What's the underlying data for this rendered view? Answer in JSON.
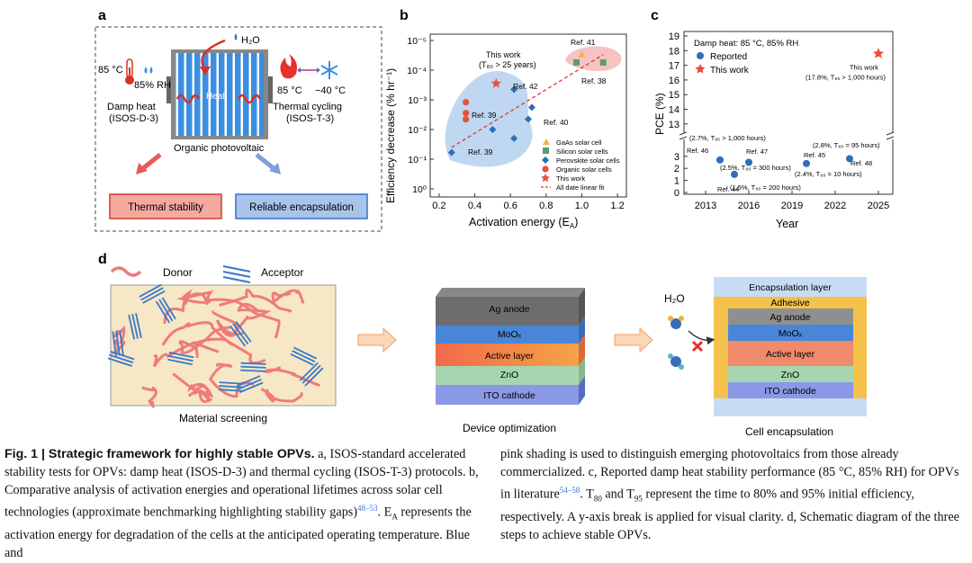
{
  "panel_labels": {
    "a": "a",
    "b": "b",
    "c": "c",
    "d": "d"
  },
  "panel_a": {
    "water": "H₂O",
    "temp_damp": "85 °C",
    "rh": "85% RH",
    "heat": "Heat",
    "damp_heat": "Damp heat",
    "damp_heat_std": "(ISOS-D-3)",
    "hot": "85 °C",
    "cold": "−40 °C",
    "thermal_cycling": "Thermal cycling",
    "thermal_cycling_std": "(ISOS-T-3)",
    "device": "Organic photovoltaic",
    "box_left": "Thermal stability",
    "box_right": "Reliable encapsulation"
  },
  "panel_d": {
    "donor": "Donor",
    "acceptor": "Acceptor",
    "screening": "Material screening",
    "optimization": "Device optimization",
    "encapsulation_title": "Cell encapsulation",
    "water": "H₂O",
    "stack_layers": [
      "Ag anode",
      "MoOₓ",
      "Active layer",
      "ZnO",
      "ITO cathode"
    ],
    "encap_layers": [
      "Encapsulation layer",
      "Adhesive",
      "Ag anode",
      "MoOₓ",
      "Active layer",
      "ZnO",
      "ITO cathode"
    ]
  },
  "chart_data": [
    {
      "type": "scatter",
      "xlabel": "Activation energy (E",
      "xlabel_sub": "A",
      "xlabel_end": ")",
      "ylabel": "Efficiency decrease (% hr⁻¹)",
      "xlim": [
        0.15,
        1.25
      ],
      "log_y": true,
      "y_reversed": true,
      "x_ticks": [
        "0.2",
        "0.4",
        "0.6",
        "0.8",
        "1.0",
        "1.2"
      ],
      "y_ticks": [
        "10⁻⁵",
        "10⁻⁴",
        "10⁻³",
        "10⁻²",
        "10⁻¹",
        "10⁰"
      ],
      "this_work_label": "This work",
      "this_work_t80": "(T₈₀ > 25 years)",
      "refs": [
        "Ref. 41",
        "Ref. 38",
        "Ref. 42",
        "Ref. 39",
        "Ref. 40",
        "Ref. 39"
      ],
      "series": [
        {
          "name": "GaAs solar cell",
          "points": [
            [
              1.0,
              3e-05
            ]
          ]
        },
        {
          "name": "Silicon solar cells",
          "points": [
            [
              0.97,
              5.5e-05
            ],
            [
              1.12,
              5.5e-05
            ]
          ]
        },
        {
          "name": "Perovskite solar cells",
          "points": [
            [
              0.27,
              0.06
            ],
            [
              0.5,
              0.01
            ],
            [
              0.62,
              0.02
            ],
            [
              0.62,
              0.00045
            ],
            [
              0.7,
              0.0045
            ],
            [
              0.72,
              0.0018
            ]
          ]
        },
        {
          "name": "Organic solar cells",
          "points": [
            [
              0.35,
              0.0012
            ],
            [
              0.35,
              0.0028
            ],
            [
              0.35,
              0.0045
            ]
          ]
        },
        {
          "name": "This work",
          "points": [
            [
              0.52,
              0.00028
            ]
          ]
        },
        {
          "name": "All date linear fit",
          "line": [
            [
              0.27,
              0.04
            ],
            [
              1.12,
              3e-05
            ]
          ]
        }
      ]
    },
    {
      "type": "scatter",
      "xlabel": "Year",
      "ylabel": "PCE (%)",
      "title": "Damp heat: 85 °C, 85% RH",
      "x_ticks": [
        "2013",
        "2016",
        "2019",
        "2022",
        "2025"
      ],
      "y_ticks_upper": [
        "13",
        "14",
        "15",
        "16",
        "17",
        "18",
        "19"
      ],
      "y_ticks_lower": [
        "0",
        "1",
        "2",
        "3"
      ],
      "y_break": true,
      "series": [
        {
          "name": "Reported",
          "points": [
            {
              "x": 2014,
              "y": 2.7,
              "ref": "Ref. 46",
              "note": "(2.7%, T₉₅ > 1,000 hours)"
            },
            {
              "x": 2016,
              "y": 2.5,
              "ref": "Ref. 47",
              "note": "(2.5%, T₈₀ = 300 hours)"
            },
            {
              "x": 2015,
              "y": 1.5,
              "ref": "Ref. 44",
              "note": "(1.5%, T₈₀ = 200 hours)"
            },
            {
              "x": 2020,
              "y": 2.4,
              "ref": "Ref. 45",
              "note": "(2.4%, T₈₀ = 10 hours)"
            },
            {
              "x": 2023,
              "y": 2.8,
              "ref": "Ref. 48",
              "note": "(2.8%, T₈₀ = 95 hours)"
            }
          ]
        },
        {
          "name": "This work",
          "points": [
            {
              "x": 2025,
              "y": 17.8,
              "label": "This work",
              "note": "(17.8%, T₉₅ > 1,000 hours)"
            }
          ]
        }
      ]
    }
  ],
  "caption": {
    "fig": "Fig. 1 | Strategic framework for highly stable OPVs.",
    "left": [
      "a, ISOS-standard accelerated stability tests for OPVs: damp heat (ISOS-D-3) and thermal cycling (ISOS-T-3) protocols. b, Comparative analysis of activation energies and operational lifetimes across solar cell technologies (approximate benchmarking highlighting stability gaps)",
      "48–53",
      ". E",
      "A",
      " represents the activation energy for degradation of the cells at the anticipated operating temperature. Blue and"
    ],
    "right": [
      "pink shading is used to distinguish emerging photovoltaics from those already commercialized. c, Reported damp heat stability performance (85 °C, 85% RH) for OPVs in literature",
      "54–58",
      ". T",
      "80",
      " and T",
      "95",
      " represent the time to 80% and 95% initial efficiency, respectively. A y-axis break is applied for visual clarity. d, Schematic diagram of the three steps to achieve stable OPVs."
    ]
  }
}
